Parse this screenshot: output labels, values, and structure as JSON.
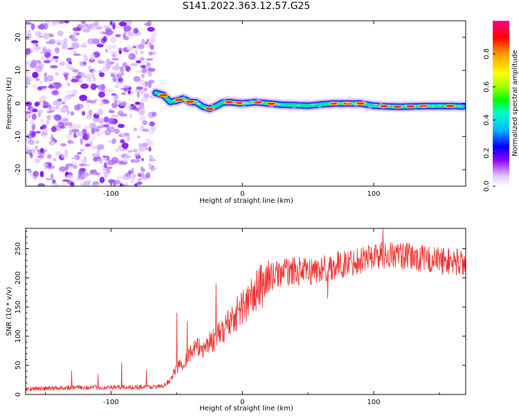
{
  "title": "S141.2022.363.12.57.G25",
  "chart_data": [
    {
      "type": "heatmap",
      "xlabel": "Height of straight line (km)",
      "ylabel": "Frequency (Hz)",
      "xlim": [
        -165,
        170
      ],
      "ylim": [
        -25,
        25
      ],
      "xticks": [
        -100,
        0,
        100
      ],
      "xtick_labels": [
        "-100",
        "0",
        "100"
      ],
      "yticks": [
        -20,
        -10,
        0,
        10,
        20
      ],
      "ytick_labels": [
        "-20",
        "-10",
        "0",
        "10",
        "20"
      ],
      "noise_region_x": [
        -165,
        -67
      ],
      "signal_trace": {
        "x": [
          -66,
          -60,
          -55,
          -50,
          -45,
          -40,
          -35,
          -30,
          -25,
          -20,
          -15,
          -10,
          0,
          10,
          20,
          30,
          40,
          50,
          60,
          70,
          80,
          90,
          100,
          110,
          120,
          130,
          140,
          150,
          160,
          168
        ],
        "y": [
          3.2,
          2.5,
          0.5,
          0.8,
          1.5,
          0.5,
          0.3,
          -1.0,
          -1.6,
          -0.8,
          0.3,
          0.4,
          0.0,
          0.4,
          0.0,
          -0.4,
          -0.5,
          -0.7,
          -0.3,
          0.0,
          0.0,
          0.0,
          -0.7,
          -0.9,
          -1.0,
          -0.9,
          -0.8,
          -0.8,
          -0.8,
          -0.9
        ]
      },
      "colorbar": {
        "label": "Normalized spectral amplitude",
        "range": [
          0.0,
          1.0
        ],
        "ticks": [
          0.0,
          0.2,
          0.4,
          0.6,
          0.8
        ],
        "tick_labels": [
          "0.0",
          "0.2",
          "0.4",
          "0.6",
          "0.8"
        ],
        "colormap": "rainbow (white, violet, blue, cyan, green, yellow, orange, red)"
      },
      "grid": false
    },
    {
      "type": "line",
      "xlabel": "Height of straight line (km)",
      "ylabel": "SNR (10 * v/v)",
      "xlim": [
        -165,
        170
      ],
      "ylim": [
        0,
        285
      ],
      "xticks": [
        -100,
        0,
        100
      ],
      "xtick_labels": [
        "-100",
        "0",
        "100"
      ],
      "yticks": [
        0,
        50,
        100,
        150,
        200,
        250
      ],
      "ytick_labels": [
        "0",
        "50",
        "100",
        "150",
        "200",
        "250"
      ],
      "color": "#ee3333",
      "grid": false,
      "series": [
        {
          "x": [
            -165,
            -150,
            -140,
            -130,
            -125,
            -120,
            -110,
            -100,
            -90,
            -80,
            -70,
            -60,
            -55,
            -50,
            -45,
            -40,
            -35,
            -30,
            -25,
            -20,
            -15,
            -10,
            -5,
            0,
            5,
            10,
            15,
            20,
            25,
            30,
            40,
            50,
            60,
            70,
            80,
            90,
            100,
            110,
            120,
            130,
            140,
            150,
            160,
            170
          ],
          "y": [
            10,
            10,
            11,
            12,
            12,
            12,
            12,
            12,
            12,
            13,
            13,
            14,
            25,
            45,
            55,
            70,
            80,
            80,
            90,
            95,
            110,
            125,
            138,
            150,
            160,
            175,
            188,
            200,
            205,
            210,
            212,
            210,
            215,
            220,
            225,
            232,
            238,
            240,
            238,
            235,
            232,
            230,
            228,
            226
          ],
          "spikes": [
            {
              "x": -130,
              "y": 40
            },
            {
              "x": -110,
              "y": 35
            },
            {
              "x": -92,
              "y": 55
            },
            {
              "x": -73,
              "y": 42
            },
            {
              "x": -50,
              "y": 140
            },
            {
              "x": -42,
              "y": 125
            },
            {
              "x": -20,
              "y": 190
            },
            {
              "x": 65,
              "y": 165
            },
            {
              "x": 107,
              "y": 285
            }
          ]
        }
      ]
    }
  ]
}
